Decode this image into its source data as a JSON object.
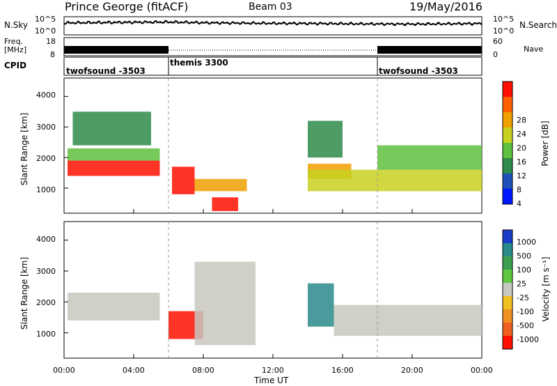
{
  "header": {
    "station": "Prince George (fitACF)",
    "beam": "Beam 03",
    "date": "19/May/2016"
  },
  "noise_panel": {
    "left_label": "N.Sky",
    "right_label": "N.Search",
    "left_ticks": [
      "10^5",
      "10^0"
    ],
    "right_ticks": [
      "10^5",
      "10^0"
    ]
  },
  "freq_panel": {
    "left_label_1": "Freq.",
    "left_label_2": "[MHz]",
    "left_ticks": [
      "18",
      "8"
    ],
    "right_label": "Nave",
    "right_ticks": [
      "60",
      "0"
    ]
  },
  "cpid": {
    "label": "CPID",
    "segments": [
      {
        "name": "twofsound -3503",
        "start_hour": 0,
        "end_hour": 6
      },
      {
        "name": "themis 3300",
        "start_hour": 6,
        "end_hour": 18
      },
      {
        "name": "twofsound -3503",
        "start_hour": 18,
        "end_hour": 24
      }
    ]
  },
  "x_axis": {
    "label": "Time UT",
    "range_hours": [
      0,
      24
    ],
    "ticks": [
      "00:00",
      "04:00",
      "08:00",
      "12:00",
      "16:00",
      "20:00",
      "00:00"
    ]
  },
  "y_axis": {
    "label": "Slant Range [km]",
    "range_km": [
      180,
      4600
    ],
    "ticks": [
      "1000",
      "2000",
      "3000",
      "4000"
    ]
  },
  "power_colorbar": {
    "label": "Power [dB]",
    "ticks": [
      "4",
      "8",
      "12",
      "16",
      "20",
      "24",
      "28"
    ],
    "colors": [
      "#0018ff",
      "#2050b8",
      "#2e8a4a",
      "#60c040",
      "#c8d020",
      "#f0a000",
      "#ff6000",
      "#ff1000"
    ]
  },
  "velocity_colorbar": {
    "label": "Velocity [m s⁻¹]",
    "ticks": [
      "1000",
      "500",
      "100",
      "25",
      "-25",
      "-100",
      "-500",
      "-1000"
    ],
    "colors": [
      "#1a3cc8",
      "#2a8a8a",
      "#3aa050",
      "#60c840",
      "#c8c8c0",
      "#f0c020",
      "#f09020",
      "#f06020",
      "#ff1000"
    ]
  },
  "chart_data": [
    {
      "type": "line",
      "title": "N.Sky / N.Search",
      "x_unit": "hours UT",
      "y_scale": "log",
      "ylim": [
        1,
        100000
      ],
      "series": [
        {
          "name": "N.Sky",
          "x": [
            0,
            2,
            4,
            6,
            8,
            10,
            12,
            14,
            16,
            18,
            20,
            22,
            24
          ],
          "values": [
            2000,
            2500,
            3000,
            3500,
            2200,
            1800,
            1500,
            1400,
            1200,
            1000,
            900,
            1100,
            1300
          ]
        },
        {
          "name": "N.Search",
          "x": [
            0,
            6,
            12,
            18,
            24
          ],
          "values": [
            1500,
            2000,
            1200,
            900,
            1100
          ]
        }
      ]
    },
    {
      "type": "line",
      "title": "Freq / Nave",
      "x_unit": "hours UT",
      "series": [
        {
          "name": "Freq.",
          "x": [
            0,
            6,
            6,
            18,
            18,
            24
          ],
          "values": [
            10,
            10,
            10,
            10,
            10,
            10
          ]
        },
        {
          "name": "Nave",
          "x": [
            0,
            6,
            6,
            18,
            18,
            24
          ],
          "values": [
            35,
            35,
            20,
            20,
            35,
            35
          ]
        }
      ]
    },
    {
      "type": "heatmap",
      "title": "Power [dB]",
      "xlabel": "Time UT",
      "ylabel": "Slant Range [km]",
      "x_range_hours": [
        0,
        24
      ],
      "y_range_km": [
        180,
        4600
      ],
      "value_range": [
        0,
        30
      ],
      "echo_regions": [
        {
          "t_start": 0.2,
          "t_end": 5.5,
          "r_start": 1400,
          "r_end": 1900,
          "power_db": 28
        },
        {
          "t_start": 0.2,
          "t_end": 5.5,
          "r_start": 1900,
          "r_end": 2300,
          "power_db": 14
        },
        {
          "t_start": 0.5,
          "t_end": 5.0,
          "r_start": 2400,
          "r_end": 3500,
          "power_db": 8
        },
        {
          "t_start": 6.2,
          "t_end": 7.5,
          "r_start": 800,
          "r_end": 1700,
          "power_db": 30
        },
        {
          "t_start": 7.5,
          "t_end": 10.5,
          "r_start": 900,
          "r_end": 1300,
          "power_db": 20
        },
        {
          "t_start": 8.5,
          "t_end": 10.0,
          "r_start": 250,
          "r_end": 700,
          "power_db": 30
        },
        {
          "t_start": 14.0,
          "t_end": 16.5,
          "r_start": 1300,
          "r_end": 1800,
          "power_db": 22
        },
        {
          "t_start": 14.0,
          "t_end": 24.0,
          "r_start": 900,
          "r_end": 1600,
          "power_db": 18
        },
        {
          "t_start": 14.0,
          "t_end": 16.0,
          "r_start": 2000,
          "r_end": 3200,
          "power_db": 8
        },
        {
          "t_start": 18.0,
          "t_end": 24.0,
          "r_start": 1600,
          "r_end": 2400,
          "power_db": 12
        }
      ]
    },
    {
      "type": "heatmap",
      "title": "Velocity [m s-1]",
      "xlabel": "Time UT",
      "ylabel": "Slant Range [km]",
      "x_range_hours": [
        0,
        24
      ],
      "y_range_km": [
        180,
        4600
      ],
      "value_range": [
        -1000,
        1000
      ],
      "echo_regions": [
        {
          "t_start": 0.2,
          "t_end": 5.5,
          "r_start": 1400,
          "r_end": 2300,
          "velocity": 0
        },
        {
          "t_start": 6.0,
          "t_end": 8.0,
          "r_start": 800,
          "r_end": 1700,
          "velocity": -700
        },
        {
          "t_start": 7.5,
          "t_end": 11.0,
          "r_start": 600,
          "r_end": 3300,
          "velocity": 0
        },
        {
          "t_start": 14.0,
          "t_end": 15.5,
          "r_start": 1200,
          "r_end": 2600,
          "velocity": 300
        },
        {
          "t_start": 15.5,
          "t_end": 24.0,
          "r_start": 900,
          "r_end": 1900,
          "velocity": 0
        }
      ]
    }
  ]
}
